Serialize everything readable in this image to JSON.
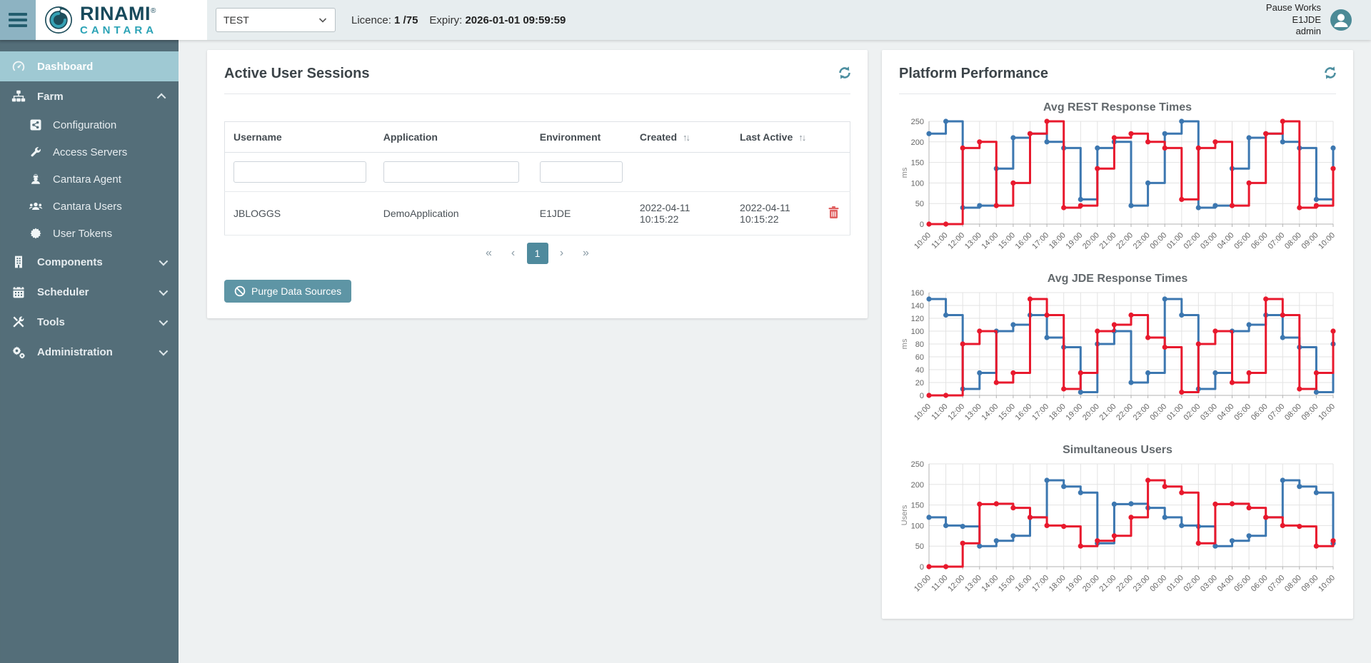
{
  "header": {
    "logo": {
      "brand": "RINAMI",
      "registered": "®",
      "product": "CANTARA"
    },
    "environment_select": {
      "value": "TEST"
    },
    "licence": {
      "label": "Licence:",
      "value": "1 /75"
    },
    "expiry": {
      "label": "Expiry:",
      "value": "2026-01-01 09:59:59"
    },
    "user_info": {
      "company": "Pause Works",
      "environment": "E1JDE",
      "username": "admin"
    }
  },
  "sidebar": {
    "items": [
      {
        "label": "Dashboard",
        "icon": "dashboard-icon",
        "active": true
      },
      {
        "label": "Farm",
        "icon": "sitemap-icon",
        "expanded": true
      },
      {
        "label": "Configuration",
        "icon": "configuration-icon",
        "sub": true
      },
      {
        "label": "Access Servers",
        "icon": "wrench-icon",
        "sub": true
      },
      {
        "label": "Cantara Agent",
        "icon": "agent-icon",
        "sub": true
      },
      {
        "label": "Cantara Users",
        "icon": "users-icon",
        "sub": true
      },
      {
        "label": "User Tokens",
        "icon": "token-icon",
        "sub": true
      },
      {
        "label": "Components",
        "icon": "building-icon",
        "expanded": false
      },
      {
        "label": "Scheduler",
        "icon": "calendar-icon",
        "expanded": false
      },
      {
        "label": "Tools",
        "icon": "tools-icon",
        "expanded": false
      },
      {
        "label": "Administration",
        "icon": "cogs-icon",
        "expanded": false
      }
    ]
  },
  "sessions_panel": {
    "title": "Active User Sessions",
    "table": {
      "columns": [
        "Username",
        "Application",
        "Environment",
        "Created",
        "Last Active"
      ],
      "sort_icon": "↑↓",
      "rows": [
        {
          "username": "JBLOGGS",
          "application": "DemoApplication",
          "environment": "E1JDE",
          "created": "2022-04-11 10:15:22",
          "last_active": "2022-04-11 10:15:22"
        }
      ]
    },
    "pagination": {
      "first": "«",
      "previous": "‹",
      "page": "1",
      "next": "›",
      "last": "»"
    },
    "purge_button_label": "Purge Data Sources"
  },
  "performance_panel": {
    "title": "Platform Performance"
  },
  "accent_colors": {
    "teal": "#4f8a9d",
    "series_blue": "#3c77b0",
    "series_red": "#e8192d"
  },
  "chart_data": [
    {
      "type": "line",
      "step": true,
      "title": "Avg REST Response Times",
      "xlabel": "",
      "ylabel": "ms",
      "ylim": [
        0,
        250
      ],
      "yticks": [
        0,
        50,
        100,
        150,
        200,
        250
      ],
      "grid": true,
      "legend": "none",
      "x": [
        "10:00",
        "11:00",
        "12:00",
        "13:00",
        "14:00",
        "15:00",
        "16:00",
        "17:00",
        "18:00",
        "19:00",
        "20:00",
        "21:00",
        "22:00",
        "23:00",
        "00:00",
        "01:00",
        "02:00",
        "03:00",
        "04:00",
        "05:00",
        "06:00",
        "07:00",
        "08:00",
        "09:00",
        "10:00"
      ],
      "series": [
        {
          "name": "rest-series-blue",
          "color": "#3c77b0",
          "values": [
            220,
            250,
            40,
            45,
            135,
            210,
            220,
            200,
            185,
            60,
            185,
            200,
            45,
            100,
            220,
            250,
            40,
            45,
            135,
            210,
            220,
            200,
            185,
            60,
            185
          ]
        },
        {
          "name": "rest-series-red",
          "color": "#e8192d",
          "values": [
            0,
            0,
            185,
            200,
            45,
            100,
            220,
            250,
            40,
            45,
            135,
            210,
            220,
            200,
            185,
            60,
            185,
            200,
            45,
            100,
            220,
            250,
            40,
            45,
            135
          ]
        }
      ]
    },
    {
      "type": "line",
      "step": true,
      "title": "Avg JDE Response Times",
      "xlabel": "",
      "ylabel": "ms",
      "ylim": [
        0,
        160
      ],
      "yticks": [
        0,
        20,
        40,
        60,
        80,
        100,
        120,
        140,
        160
      ],
      "grid": true,
      "legend": "none",
      "x": [
        "10:00",
        "11:00",
        "12:00",
        "13:00",
        "14:00",
        "15:00",
        "16:00",
        "17:00",
        "18:00",
        "19:00",
        "20:00",
        "21:00",
        "22:00",
        "23:00",
        "00:00",
        "01:00",
        "02:00",
        "03:00",
        "04:00",
        "05:00",
        "06:00",
        "07:00",
        "08:00",
        "09:00",
        "10:00"
      ],
      "series": [
        {
          "name": "jde-series-blue",
          "color": "#3c77b0",
          "values": [
            150,
            125,
            10,
            35,
            100,
            110,
            125,
            90,
            75,
            5,
            80,
            100,
            20,
            35,
            150,
            125,
            10,
            35,
            100,
            110,
            125,
            90,
            75,
            5,
            80
          ]
        },
        {
          "name": "jde-series-red",
          "color": "#e8192d",
          "values": [
            0,
            0,
            80,
            100,
            20,
            35,
            150,
            125,
            10,
            35,
            100,
            110,
            125,
            90,
            75,
            5,
            80,
            100,
            20,
            35,
            150,
            125,
            10,
            35,
            100
          ]
        }
      ]
    },
    {
      "type": "line",
      "step": true,
      "title": "Simultaneous Users",
      "xlabel": "",
      "ylabel": "Users",
      "ylim": [
        0,
        250
      ],
      "yticks": [
        0,
        50,
        100,
        150,
        200,
        250
      ],
      "grid": true,
      "legend": "none",
      "x": [
        "10:00",
        "11:00",
        "12:00",
        "13:00",
        "14:00",
        "15:00",
        "16:00",
        "17:00",
        "18:00",
        "19:00",
        "20:00",
        "21:00",
        "22:00",
        "23:00",
        "00:00",
        "01:00",
        "02:00",
        "03:00",
        "04:00",
        "05:00",
        "06:00",
        "07:00",
        "08:00",
        "09:00",
        "10:00"
      ],
      "series": [
        {
          "name": "users-series-blue",
          "color": "#3c77b0",
          "values": [
            120,
            100,
            98,
            50,
            63,
            75,
            120,
            210,
            195,
            180,
            57,
            152,
            153,
            143,
            120,
            100,
            98,
            50,
            63,
            75,
            120,
            210,
            195,
            180,
            57
          ]
        },
        {
          "name": "users-series-red",
          "color": "#e8192d",
          "values": [
            0,
            0,
            57,
            152,
            153,
            143,
            120,
            100,
            98,
            50,
            63,
            75,
            120,
            210,
            195,
            180,
            57,
            152,
            153,
            143,
            120,
            100,
            98,
            50,
            63
          ]
        }
      ]
    }
  ]
}
